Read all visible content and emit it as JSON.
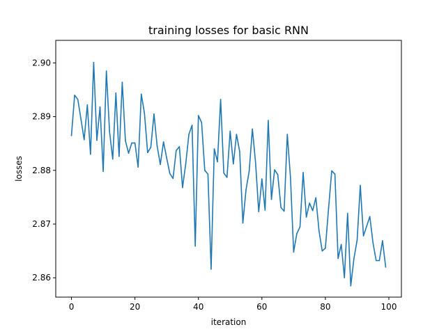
{
  "chart_data": {
    "type": "line",
    "title": "training losses for basic RNN",
    "xlabel": "iteration",
    "ylabel": "losses",
    "xlim": [
      -4.95,
      103.95
    ],
    "ylim": [
      2.8564,
      2.9042
    ],
    "grid": false,
    "legend": "none",
    "x_ticks": [
      0,
      20,
      40,
      60,
      80,
      100
    ],
    "x_tick_labels": [
      "0",
      "20",
      "40",
      "60",
      "80",
      "100"
    ],
    "y_ticks": [
      2.86,
      2.87,
      2.88,
      2.89,
      2.9
    ],
    "y_tick_labels": [
      "2.86",
      "2.87",
      "2.88",
      "2.89",
      "2.90"
    ],
    "series": [
      {
        "color": "#1f77b4",
        "x": [
          0,
          1,
          2,
          3,
          4,
          5,
          6,
          7,
          8,
          9,
          10,
          11,
          12,
          13,
          14,
          15,
          16,
          17,
          18,
          19,
          20,
          21,
          22,
          23,
          24,
          25,
          26,
          27,
          28,
          29,
          30,
          31,
          32,
          33,
          34,
          35,
          36,
          37,
          38,
          39,
          40,
          41,
          42,
          43,
          44,
          45,
          46,
          47,
          48,
          49,
          50,
          51,
          52,
          53,
          54,
          55,
          56,
          57,
          58,
          59,
          60,
          61,
          62,
          63,
          64,
          65,
          66,
          67,
          68,
          69,
          70,
          71,
          72,
          73,
          74,
          75,
          76,
          77,
          78,
          79,
          80,
          81,
          82,
          83,
          84,
          85,
          86,
          87,
          88,
          89,
          90,
          91,
          92,
          93,
          94,
          95,
          96,
          97,
          98,
          99
        ],
        "values": [
          2.8865,
          2.894,
          2.8932,
          2.8895,
          2.8857,
          2.8922,
          2.883,
          2.9001,
          2.8856,
          2.8918,
          2.8798,
          2.8985,
          2.8872,
          2.8821,
          2.8944,
          2.8826,
          2.8964,
          2.8855,
          2.8832,
          2.8851,
          2.8851,
          2.8806,
          2.8942,
          2.8906,
          2.8833,
          2.8843,
          2.8905,
          2.8845,
          2.8811,
          2.8853,
          2.8823,
          2.8794,
          2.8785,
          2.8837,
          2.8844,
          2.8768,
          2.8812,
          2.8867,
          2.8884,
          2.8659,
          2.8902,
          2.8889,
          2.88,
          2.8793,
          2.8616,
          2.884,
          2.8816,
          2.8932,
          2.8795,
          2.8787,
          2.8873,
          2.8812,
          2.8867,
          2.8835,
          2.8702,
          2.8764,
          2.8799,
          2.8877,
          2.8815,
          2.8723,
          2.8784,
          2.8726,
          2.8893,
          2.8746,
          2.8801,
          2.8792,
          2.8731,
          2.8724,
          2.8867,
          2.8787,
          2.8648,
          2.8682,
          2.8695,
          2.8796,
          2.8713,
          2.8739,
          2.8725,
          2.8749,
          2.8687,
          2.865,
          2.8655,
          2.8729,
          2.8799,
          2.8793,
          2.8636,
          2.8662,
          2.86,
          2.872,
          2.8585,
          2.8636,
          2.867,
          2.8772,
          2.8678,
          2.8696,
          2.8714,
          2.8665,
          2.8632,
          2.8632,
          2.8669,
          2.862
        ]
      }
    ]
  }
}
